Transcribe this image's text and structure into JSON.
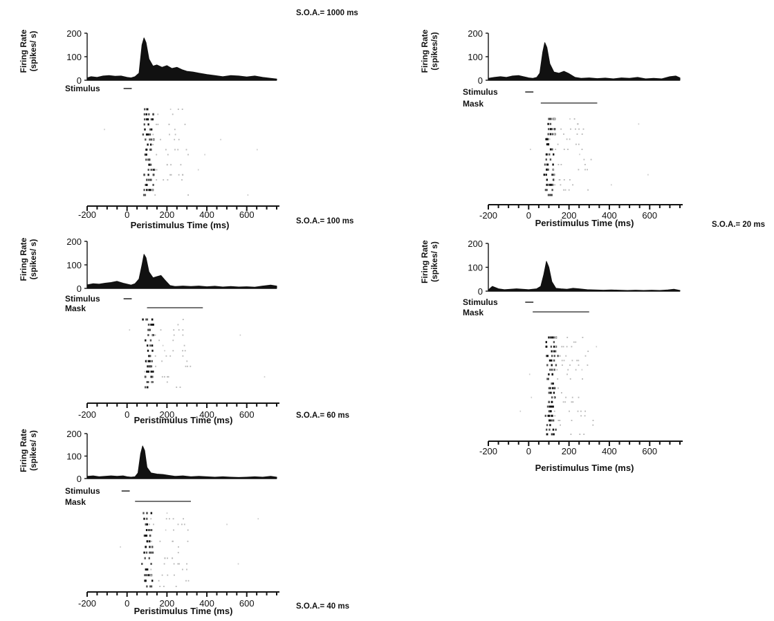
{
  "chart_data": [
    {
      "type": "area",
      "title": "S.O.A.= 1000 ms",
      "ylabel_lines": [
        "Firing Rate",
        "(spikes/ s)"
      ],
      "xlabel": "Peristimulus Time (ms)",
      "ylim": [
        0,
        200
      ],
      "y_ticks": [
        0,
        100,
        200
      ],
      "y_tick_labels": [
        "0",
        "100",
        "200"
      ],
      "xlim": [
        -200,
        750
      ],
      "x_ticks": [
        -200,
        0,
        200,
        400,
        600
      ],
      "x_tick_labels": [
        "-200",
        "0",
        "200",
        "400",
        "600"
      ],
      "stimulus_label": "Stimulus",
      "stimulus_interval": [
        0,
        20
      ],
      "x": [
        -200,
        -180,
        -150,
        -120,
        -90,
        -60,
        -30,
        0,
        20,
        40,
        60,
        75,
        85,
        95,
        110,
        130,
        150,
        175,
        200,
        225,
        250,
        275,
        300,
        330,
        360,
        400,
        440,
        480,
        520,
        560,
        600,
        640,
        680,
        720,
        750
      ],
      "y": [
        10,
        15,
        12,
        18,
        20,
        17,
        18,
        12,
        10,
        15,
        30,
        150,
        180,
        160,
        90,
        60,
        65,
        55,
        62,
        50,
        55,
        45,
        38,
        35,
        30,
        24,
        20,
        15,
        20,
        18,
        14,
        18,
        12,
        8,
        5
      ],
      "raster_trials": 18
    },
    {
      "type": "area",
      "title": "S.O.A.= 100 ms",
      "ylabel_lines": [
        "Firing Rate",
        "(spikes/ s)"
      ],
      "xlabel": "Peristimulus Time (ms)",
      "ylim": [
        0,
        200
      ],
      "y_ticks": [
        0,
        100,
        200
      ],
      "y_tick_labels": [
        "0",
        "100",
        "200"
      ],
      "xlim": [
        -200,
        750
      ],
      "x_ticks": [
        -200,
        0,
        200,
        400,
        600
      ],
      "x_tick_labels": [
        "-200",
        "0",
        "200",
        "400",
        "600"
      ],
      "stimulus_label": "Stimulus",
      "stimulus_interval": [
        0,
        20
      ],
      "mask_label": "Mask",
      "mask_interval": [
        100,
        380
      ],
      "x": [
        -200,
        -170,
        -140,
        -110,
        -80,
        -50,
        -20,
        0,
        20,
        40,
        60,
        75,
        85,
        95,
        110,
        130,
        150,
        170,
        190,
        215,
        240,
        280,
        320,
        360,
        400,
        440,
        480,
        520,
        560,
        600,
        640,
        680,
        720,
        750
      ],
      "y": [
        15,
        20,
        18,
        22,
        25,
        30,
        22,
        18,
        14,
        20,
        40,
        100,
        145,
        130,
        70,
        45,
        50,
        55,
        35,
        12,
        8,
        10,
        8,
        10,
        7,
        9,
        6,
        8,
        6,
        7,
        5,
        10,
        14,
        10
      ],
      "raster_trials": 14
    },
    {
      "type": "area",
      "title": "S.O.A.= 60 ms",
      "ylabel_lines": [
        "Firing Rate",
        "(spikes/s)"
      ],
      "xlabel": "Peristimulus Time (ms)",
      "ylim": [
        0,
        200
      ],
      "y_ticks": [
        0,
        100,
        200
      ],
      "y_tick_labels": [
        "0",
        "100",
        "200"
      ],
      "xlim": [
        -200,
        750
      ],
      "x_ticks": [
        -200,
        0,
        200,
        400,
        600
      ],
      "x_tick_labels": [
        "-200",
        "0",
        "200",
        "400",
        "600"
      ],
      "stimulus_label": "Stimulus",
      "stimulus_interval": [
        0,
        20
      ],
      "mask_label": "Mask",
      "mask_interval": [
        60,
        340
      ],
      "x": [
        -200,
        -170,
        -140,
        -110,
        -80,
        -50,
        -20,
        0,
        20,
        40,
        55,
        70,
        80,
        90,
        105,
        125,
        150,
        175,
        200,
        230,
        260,
        300,
        340,
        380,
        420,
        460,
        500,
        540,
        580,
        620,
        660,
        700,
        730,
        750
      ],
      "y": [
        8,
        12,
        15,
        12,
        18,
        20,
        14,
        10,
        8,
        12,
        30,
        120,
        160,
        140,
        70,
        35,
        30,
        38,
        28,
        12,
        8,
        10,
        7,
        9,
        6,
        10,
        8,
        12,
        6,
        8,
        6,
        15,
        18,
        10
      ],
      "raster_trials": 16
    },
    {
      "type": "area",
      "title": "S.O.A.= 40 ms",
      "ylabel_lines": [
        "Firing Rate",
        "(spikes/ s)"
      ],
      "xlabel": "Peristimulus Time (ms)",
      "ylim": [
        0,
        200
      ],
      "y_ticks": [
        0,
        100,
        200
      ],
      "y_tick_labels": [
        "0",
        "100",
        "200"
      ],
      "xlim": [
        -200,
        750
      ],
      "x_ticks": [
        -200,
        0,
        200,
        400,
        600
      ],
      "x_tick_labels": [
        "-200",
        "0",
        "200",
        "400",
        "600"
      ],
      "stimulus_label": "Stimulus",
      "stimulus_interval": [
        -10,
        10
      ],
      "mask_label": "Mask",
      "mask_interval": [
        40,
        320
      ],
      "x": [
        -200,
        -170,
        -140,
        -110,
        -80,
        -50,
        -20,
        0,
        20,
        40,
        55,
        68,
        78,
        88,
        100,
        120,
        150,
        180,
        210,
        240,
        280,
        320,
        360,
        400,
        440,
        480,
        520,
        560,
        600,
        640,
        680,
        720,
        750
      ],
      "y": [
        10,
        12,
        8,
        10,
        12,
        10,
        12,
        8,
        6,
        8,
        25,
        110,
        145,
        125,
        50,
        25,
        20,
        18,
        14,
        10,
        12,
        8,
        10,
        8,
        6,
        8,
        6,
        5,
        6,
        8,
        6,
        10,
        6
      ],
      "raster_trials": 14
    },
    {
      "type": "area",
      "title": "S.O.A.= 20 ms",
      "ylabel_lines": [
        "Firing Rate",
        "(spikes/ s)"
      ],
      "xlabel": "Peristimulus Time (ms)",
      "ylim": [
        0,
        200
      ],
      "y_ticks": [
        0,
        100,
        200
      ],
      "y_tick_labels": [
        "0",
        "100",
        "200"
      ],
      "xlim": [
        -200,
        750
      ],
      "x_ticks": [
        -200,
        0,
        200,
        400,
        600
      ],
      "x_tick_labels": [
        "-200",
        "0",
        "200",
        "400",
        "600"
      ],
      "stimulus_label": "Stimulus",
      "stimulus_interval": [
        0,
        20
      ],
      "mask_label": "Mask",
      "mask_interval": [
        20,
        300
      ],
      "x": [
        -200,
        -180,
        -150,
        -120,
        -90,
        -60,
        -30,
        0,
        20,
        40,
        60,
        75,
        88,
        100,
        115,
        135,
        160,
        190,
        220,
        250,
        290,
        330,
        370,
        410,
        450,
        490,
        530,
        570,
        610,
        650,
        690,
        720,
        750
      ],
      "y": [
        5,
        20,
        10,
        6,
        8,
        10,
        8,
        6,
        8,
        10,
        20,
        70,
        125,
        100,
        40,
        12,
        10,
        8,
        12,
        10,
        6,
        5,
        4,
        5,
        4,
        3,
        4,
        3,
        4,
        3,
        5,
        8,
        3
      ],
      "raster_trials": 22
    }
  ]
}
